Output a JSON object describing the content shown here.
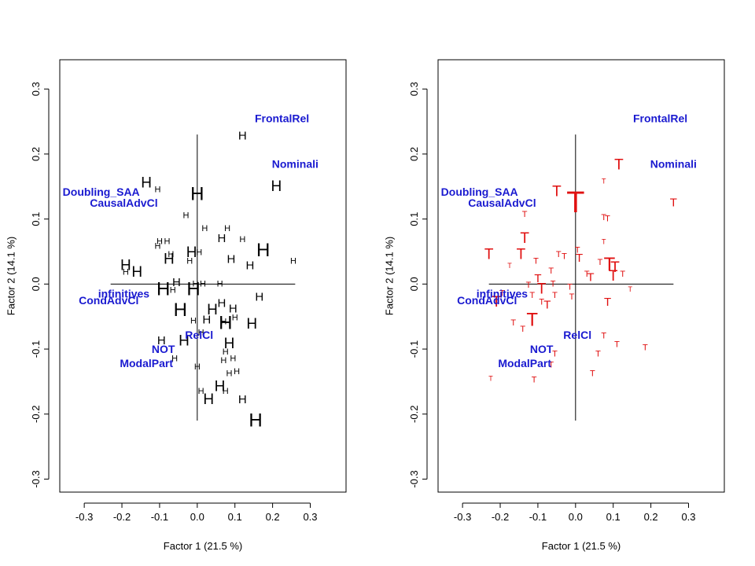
{
  "chart_data": [
    {
      "type": "scatter",
      "xlabel": "Factor 1  (21.5 %)",
      "ylabel": "Factor 2  (14.1 %)",
      "xlim": [
        -0.365,
        0.395
      ],
      "ylim": [
        -0.32,
        0.345
      ],
      "xticks": [
        -0.3,
        -0.2,
        -0.1,
        0.0,
        0.1,
        0.2,
        0.3
      ],
      "xtick_labels": [
        "-0.3",
        "-0.2",
        "-0.1",
        "0.0",
        "0.1",
        "0.2",
        "0.3"
      ],
      "yticks": [
        -0.3,
        -0.2,
        -0.1,
        0.0,
        0.1,
        0.2,
        0.3
      ],
      "ytick_labels": [
        "-0.3",
        "-0.2",
        "-0.1",
        "0.0",
        "0.1",
        "0.2",
        "0.3"
      ],
      "grid": false,
      "reference_lines": {
        "h": {
          "y": 0,
          "x_from": -0.23,
          "x_to": 0.26
        },
        "v": {
          "x": 0,
          "y_from": -0.21,
          "y_to": 0.23
        }
      },
      "point_color": "#000000",
      "label_color": "#1a1ad0",
      "variables": [
        {
          "text": "FrontalRel",
          "x": 0.225,
          "y": 0.255
        },
        {
          "text": "Nominali",
          "x": 0.26,
          "y": 0.185
        },
        {
          "text": "Doubling_SAA",
          "x": -0.255,
          "y": 0.142
        },
        {
          "text": "CausalAdvCl",
          "x": -0.195,
          "y": 0.125
        },
        {
          "text": "infinitives",
          "x": -0.195,
          "y": -0.015
        },
        {
          "text": "CondAdvCl",
          "x": -0.235,
          "y": -0.025
        },
        {
          "text": "RelCl",
          "x": 0.005,
          "y": -0.078
        },
        {
          "text": "NOT",
          "x": -0.09,
          "y": -0.1
        },
        {
          "text": "ModalPart",
          "x": -0.135,
          "y": -0.122
        }
      ],
      "series": [
        {
          "marker": "H",
          "points": [
            {
              "x": 0.12,
              "y": 0.228,
              "s": "m"
            },
            {
              "x": 0.21,
              "y": 0.15,
              "s": "l"
            },
            {
              "x": -0.135,
              "y": 0.155,
              "s": "l"
            },
            {
              "x": -0.105,
              "y": 0.145,
              "s": "s"
            },
            {
              "x": 0.0,
              "y": 0.138,
              "s": "xl"
            },
            {
              "x": -0.03,
              "y": 0.105,
              "s": "s"
            },
            {
              "x": 0.02,
              "y": 0.085,
              "s": "s"
            },
            {
              "x": 0.08,
              "y": 0.085,
              "s": "s"
            },
            {
              "x": 0.065,
              "y": 0.07,
              "s": "m"
            },
            {
              "x": 0.12,
              "y": 0.068,
              "s": "s"
            },
            {
              "x": -0.1,
              "y": 0.065,
              "s": "s"
            },
            {
              "x": -0.08,
              "y": 0.065,
              "s": "s"
            },
            {
              "x": -0.105,
              "y": 0.058,
              "s": "s"
            },
            {
              "x": 0.175,
              "y": 0.052,
              "s": "xl"
            },
            {
              "x": -0.015,
              "y": 0.048,
              "s": "l"
            },
            {
              "x": 0.005,
              "y": 0.048,
              "s": "s"
            },
            {
              "x": -0.07,
              "y": 0.045,
              "s": "s"
            },
            {
              "x": -0.075,
              "y": 0.038,
              "s": "l"
            },
            {
              "x": 0.09,
              "y": 0.038,
              "s": "m"
            },
            {
              "x": -0.02,
              "y": 0.035,
              "s": "s"
            },
            {
              "x": 0.255,
              "y": 0.035,
              "s": "s"
            },
            {
              "x": 0.14,
              "y": 0.028,
              "s": "m"
            },
            {
              "x": -0.19,
              "y": 0.028,
              "s": "l"
            },
            {
              "x": -0.19,
              "y": 0.018,
              "s": "s"
            },
            {
              "x": -0.16,
              "y": 0.018,
              "s": "l"
            },
            {
              "x": -0.055,
              "y": 0.002,
              "s": "m"
            },
            {
              "x": -0.005,
              "y": 0.0,
              "s": "s"
            },
            {
              "x": 0.015,
              "y": 0.0,
              "s": "s"
            },
            {
              "x": 0.06,
              "y": 0.0,
              "s": "s"
            },
            {
              "x": -0.09,
              "y": -0.008,
              "s": "xl"
            },
            {
              "x": -0.01,
              "y": -0.008,
              "s": "xl"
            },
            {
              "x": -0.065,
              "y": -0.01,
              "s": "s"
            },
            {
              "x": 0.165,
              "y": -0.02,
              "s": "m"
            },
            {
              "x": 0.065,
              "y": -0.03,
              "s": "m"
            },
            {
              "x": -0.045,
              "y": -0.04,
              "s": "xl"
            },
            {
              "x": 0.04,
              "y": -0.04,
              "s": "l"
            },
            {
              "x": 0.095,
              "y": -0.038,
              "s": "m"
            },
            {
              "x": 0.025,
              "y": -0.055,
              "s": "m"
            },
            {
              "x": 0.07,
              "y": -0.058,
              "s": "s"
            },
            {
              "x": 0.1,
              "y": -0.052,
              "s": "s"
            },
            {
              "x": -0.01,
              "y": -0.057,
              "s": "s"
            },
            {
              "x": 0.075,
              "y": -0.06,
              "s": "xl"
            },
            {
              "x": 0.145,
              "y": -0.062,
              "s": "l"
            },
            {
              "x": 0.01,
              "y": -0.075,
              "s": "s"
            },
            {
              "x": -0.035,
              "y": -0.088,
              "s": "l"
            },
            {
              "x": -0.095,
              "y": -0.087,
              "s": "m"
            },
            {
              "x": 0.085,
              "y": -0.092,
              "s": "l"
            },
            {
              "x": 0.075,
              "y": -0.105,
              "s": "s"
            },
            {
              "x": -0.06,
              "y": -0.115,
              "s": "s"
            },
            {
              "x": 0.07,
              "y": -0.118,
              "s": "s"
            },
            {
              "x": 0.095,
              "y": -0.115,
              "s": "s"
            },
            {
              "x": 0.0,
              "y": -0.128,
              "s": "s"
            },
            {
              "x": 0.085,
              "y": -0.138,
              "s": "s"
            },
            {
              "x": 0.105,
              "y": -0.135,
              "s": "s"
            },
            {
              "x": 0.06,
              "y": -0.158,
              "s": "l"
            },
            {
              "x": 0.01,
              "y": -0.165,
              "s": "s"
            },
            {
              "x": 0.075,
              "y": -0.165,
              "s": "s"
            },
            {
              "x": 0.03,
              "y": -0.178,
              "s": "l"
            },
            {
              "x": 0.12,
              "y": -0.178,
              "s": "m"
            },
            {
              "x": 0.155,
              "y": -0.21,
              "s": "xl"
            }
          ]
        }
      ]
    },
    {
      "type": "scatter",
      "xlabel": "Factor 1  (21.5 %)",
      "ylabel": "Factor 2  (14.1 %)",
      "xlim": [
        -0.365,
        0.395
      ],
      "ylim": [
        -0.32,
        0.345
      ],
      "xticks": [
        -0.3,
        -0.2,
        -0.1,
        0.0,
        0.1,
        0.2,
        0.3
      ],
      "xtick_labels": [
        "-0.3",
        "-0.2",
        "-0.1",
        "0.0",
        "0.1",
        "0.2",
        "0.3"
      ],
      "yticks": [
        -0.3,
        -0.2,
        -0.1,
        0.0,
        0.1,
        0.2,
        0.3
      ],
      "ytick_labels": [
        "-0.3",
        "-0.2",
        "-0.1",
        "0.0",
        "0.1",
        "0.2",
        "0.3"
      ],
      "grid": false,
      "reference_lines": {
        "h": {
          "y": 0,
          "x_from": -0.23,
          "x_to": 0.26
        },
        "v": {
          "x": 0,
          "y_from": -0.21,
          "y_to": 0.23
        }
      },
      "point_color": "#e01010",
      "label_color": "#1a1ad0",
      "variables": [
        {
          "text": "FrontalRel",
          "x": 0.225,
          "y": 0.255
        },
        {
          "text": "Nominali",
          "x": 0.26,
          "y": 0.185
        },
        {
          "text": "Doubling_SAA",
          "x": -0.255,
          "y": 0.142
        },
        {
          "text": "CausalAdvCl",
          "x": -0.195,
          "y": 0.125
        },
        {
          "text": "infinitives",
          "x": -0.195,
          "y": -0.015
        },
        {
          "text": "CondAdvCl",
          "x": -0.235,
          "y": -0.025
        },
        {
          "text": "RelCl",
          "x": 0.005,
          "y": -0.078
        },
        {
          "text": "NOT",
          "x": -0.09,
          "y": -0.1
        },
        {
          "text": "ModalPart",
          "x": -0.135,
          "y": -0.122
        }
      ],
      "series": [
        {
          "marker": "T",
          "points": [
            {
              "x": 0.115,
              "y": 0.183,
              "s": "l"
            },
            {
              "x": 0.075,
              "y": 0.158,
              "s": "xs"
            },
            {
              "x": -0.05,
              "y": 0.142,
              "s": "l"
            },
            {
              "x": 0.0,
              "y": 0.125,
              "s": "xxl"
            },
            {
              "x": 0.26,
              "y": 0.125,
              "s": "m"
            },
            {
              "x": -0.135,
              "y": 0.107,
              "s": "s"
            },
            {
              "x": 0.075,
              "y": 0.102,
              "s": "s"
            },
            {
              "x": 0.085,
              "y": 0.1,
              "s": "s"
            },
            {
              "x": -0.135,
              "y": 0.07,
              "s": "l"
            },
            {
              "x": 0.075,
              "y": 0.065,
              "s": "xs"
            },
            {
              "x": -0.23,
              "y": 0.045,
              "s": "l"
            },
            {
              "x": -0.145,
              "y": 0.045,
              "s": "l"
            },
            {
              "x": 0.005,
              "y": 0.052,
              "s": "s"
            },
            {
              "x": -0.045,
              "y": 0.045,
              "s": "s"
            },
            {
              "x": -0.03,
              "y": 0.042,
              "s": "s"
            },
            {
              "x": 0.01,
              "y": 0.04,
              "s": "m"
            },
            {
              "x": -0.105,
              "y": 0.035,
              "s": "s"
            },
            {
              "x": 0.065,
              "y": 0.033,
              "s": "s"
            },
            {
              "x": 0.09,
              "y": 0.03,
              "s": "xl"
            },
            {
              "x": -0.175,
              "y": 0.028,
              "s": "xs"
            },
            {
              "x": 0.105,
              "y": 0.025,
              "s": "l"
            },
            {
              "x": -0.065,
              "y": 0.02,
              "s": "s"
            },
            {
              "x": 0.03,
              "y": 0.015,
              "s": "s"
            },
            {
              "x": 0.125,
              "y": 0.015,
              "s": "s"
            },
            {
              "x": 0.1,
              "y": 0.012,
              "s": "l"
            },
            {
              "x": -0.1,
              "y": 0.008,
              "s": "m"
            },
            {
              "x": 0.04,
              "y": 0.01,
              "s": "m"
            },
            {
              "x": -0.06,
              "y": 0.0,
              "s": "s"
            },
            {
              "x": -0.125,
              "y": -0.002,
              "s": "s"
            },
            {
              "x": -0.09,
              "y": -0.008,
              "s": "l"
            },
            {
              "x": 0.145,
              "y": -0.008,
              "s": "xs"
            },
            {
              "x": -0.015,
              "y": -0.005,
              "s": "s"
            },
            {
              "x": -0.195,
              "y": -0.015,
              "s": "s"
            },
            {
              "x": -0.115,
              "y": -0.018,
              "s": "s"
            },
            {
              "x": -0.055,
              "y": -0.018,
              "s": "s"
            },
            {
              "x": -0.01,
              "y": -0.02,
              "s": "s"
            },
            {
              "x": -0.09,
              "y": -0.028,
              "s": "s"
            },
            {
              "x": -0.21,
              "y": -0.028,
              "s": "l"
            },
            {
              "x": 0.085,
              "y": -0.028,
              "s": "m"
            },
            {
              "x": -0.075,
              "y": -0.032,
              "s": "m"
            },
            {
              "x": -0.115,
              "y": -0.055,
              "s": "xl"
            },
            {
              "x": -0.165,
              "y": -0.06,
              "s": "s"
            },
            {
              "x": -0.14,
              "y": -0.07,
              "s": "s"
            },
            {
              "x": 0.075,
              "y": -0.08,
              "s": "s"
            },
            {
              "x": 0.11,
              "y": -0.093,
              "s": "s"
            },
            {
              "x": 0.185,
              "y": -0.098,
              "s": "s"
            },
            {
              "x": -0.055,
              "y": -0.108,
              "s": "s"
            },
            {
              "x": 0.06,
              "y": -0.108,
              "s": "s"
            },
            {
              "x": -0.065,
              "y": -0.125,
              "s": "s"
            },
            {
              "x": 0.045,
              "y": -0.138,
              "s": "s"
            },
            {
              "x": -0.225,
              "y": -0.145,
              "s": "xs"
            },
            {
              "x": -0.11,
              "y": -0.148,
              "s": "s"
            }
          ]
        }
      ]
    }
  ]
}
